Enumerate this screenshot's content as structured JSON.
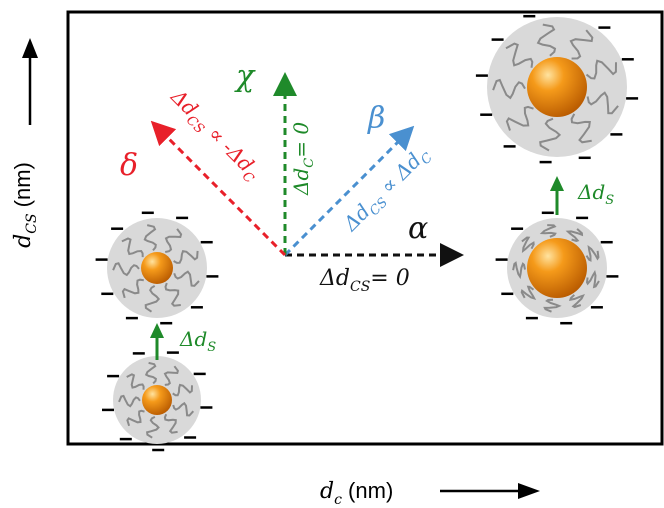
{
  "axes": {
    "x_label_var": "d",
    "x_label_sub": "c",
    "x_label_unit": " (nm)",
    "y_label_var": "d",
    "y_label_sub": "CS",
    "y_label_unit": " (nm)"
  },
  "vectors": {
    "alpha": {
      "symbol": "α",
      "pre": "Δd",
      "sub": "CS",
      "post": "= 0",
      "color": "#111111"
    },
    "beta": {
      "symbol": "β",
      "pre": "Δd",
      "sub": "CS",
      "mid": " ∝ Δd",
      "sub2": "C",
      "color": "#4a90d0"
    },
    "chi": {
      "symbol": "χ",
      "pre": "Δd",
      "sub": "C",
      "post": "= 0",
      "color": "#1f8a2a"
    },
    "delta": {
      "symbol": "δ",
      "pre": "Δd",
      "sub": "CS",
      "mid": " ∝ -Δd",
      "sub2": "C",
      "color": "#e8202a"
    }
  },
  "shell_growth": {
    "pre": "Δd",
    "sub": "S",
    "color": "#1f8a2a"
  },
  "colors": {
    "core": "#f08a10",
    "shell": "#d9d9d9",
    "ligand": "#8a8a8a",
    "frame": "#000000"
  }
}
